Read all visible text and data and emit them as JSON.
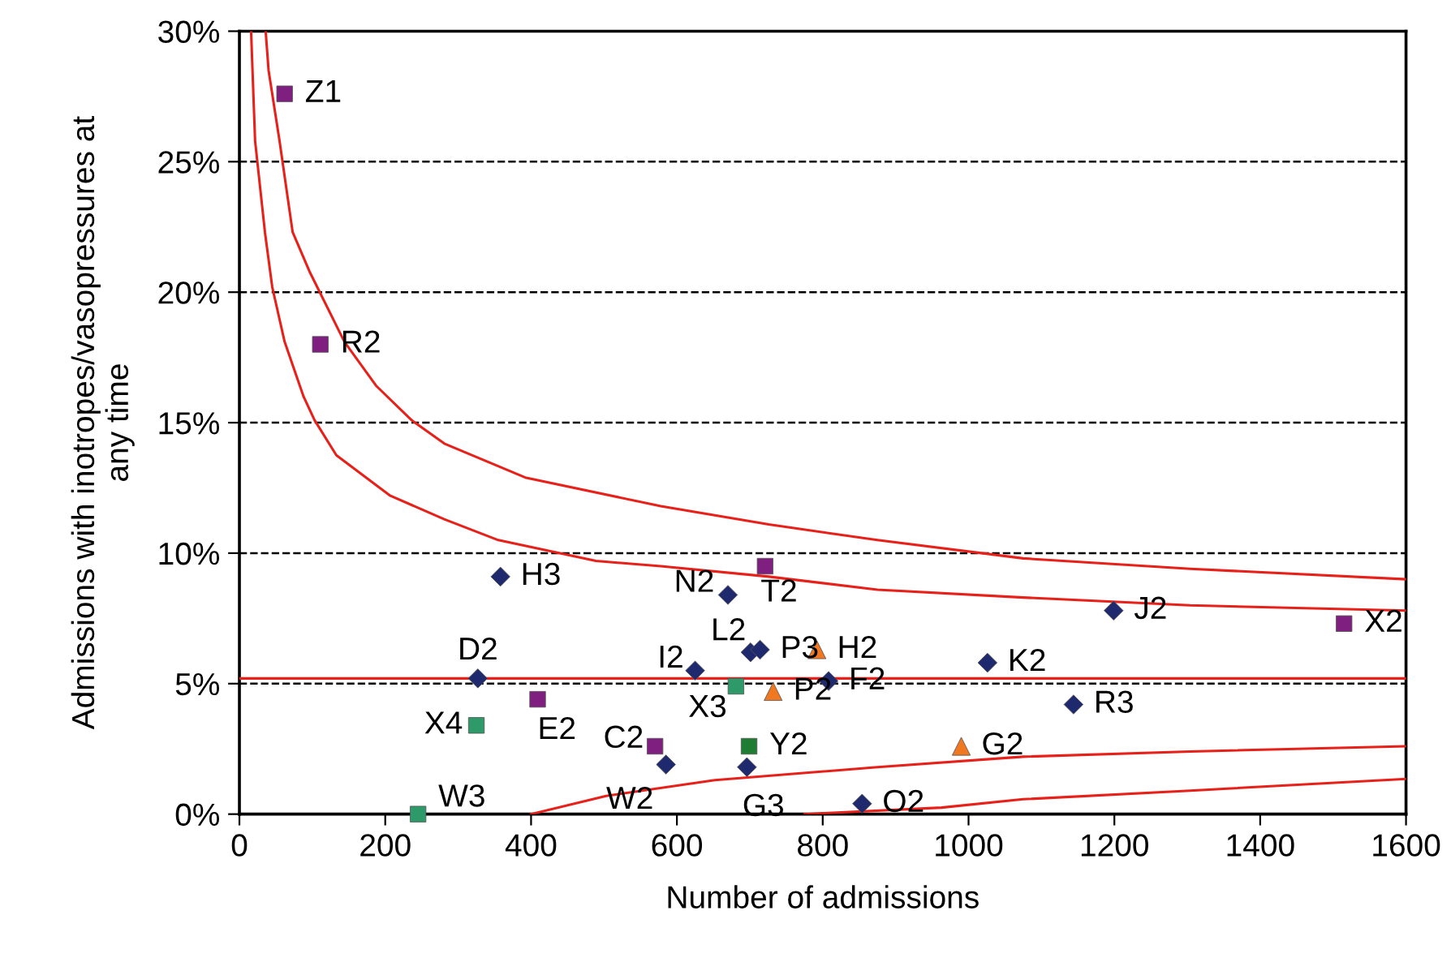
{
  "chart_data": {
    "type": "scatter",
    "xlabel": "Number of admissions",
    "ylabel": "Admissions with inotropes/vasopressures at\nany time",
    "xlim": [
      0,
      1600
    ],
    "xticks": [
      0,
      200,
      400,
      600,
      800,
      1000,
      1200,
      1400,
      1600
    ],
    "ylim": [
      0,
      30
    ],
    "yticks": [
      {
        "value": 0,
        "label": "0%"
      },
      {
        "value": 5,
        "label": "5%"
      },
      {
        "value": 10,
        "label": "10%"
      },
      {
        "value": 15,
        "label": "15%"
      },
      {
        "value": 20,
        "label": "20%"
      },
      {
        "value": 25,
        "label": "25%"
      },
      {
        "value": 30,
        "label": "30%"
      }
    ],
    "grid": "y",
    "ref_lines": [
      {
        "axis": "y",
        "value": 5.2,
        "color": "#e8201a",
        "line_style": "solid"
      }
    ],
    "series": [
      {
        "marker": "diamond",
        "color": "#1f2a6e",
        "x": [
          358,
          327,
          585,
          625,
          670,
          701,
          714,
          696,
          808,
          854,
          1026,
          1144,
          1199
        ],
        "values": [
          9.1,
          5.2,
          1.9,
          5.5,
          8.4,
          6.2,
          6.3,
          1.8,
          5.1,
          0.4,
          5.8,
          4.2,
          7.8
        ]
      },
      {
        "marker": "square",
        "color": "#7f1f7f",
        "x": [
          62,
          111,
          409,
          570,
          721,
          1515
        ],
        "values": [
          27.6,
          18.0,
          4.4,
          2.6,
          9.5,
          7.3
        ]
      },
      {
        "marker": "square",
        "color": "#2e9a6a",
        "colors": [
          "#2e9a6a",
          "#2e9a6a",
          "#2e9a6a",
          "#1e7d32"
        ],
        "x": [
          325,
          245,
          681,
          699
        ],
        "values": [
          3.4,
          0.0,
          4.9,
          2.6
        ]
      },
      {
        "marker": "triangle",
        "color": "#f07820",
        "x": [
          792,
          732,
          990
        ],
        "values": [
          6.3,
          4.7,
          2.6
        ]
      },
      {
        "type": "line",
        "marker": "none",
        "color": "#e8201a",
        "x": [
          16,
          21.5,
          35,
          45,
          62,
          88,
          103,
          133,
          207,
          281,
          355,
          489,
          578,
          726,
          875,
          1075,
          1304,
          1600
        ],
        "values": [
          30,
          25.8,
          22.3,
          20.2,
          18.1,
          16.0,
          15.1,
          13.75,
          12.2,
          11.3,
          10.5,
          9.7,
          9.5,
          9.1,
          8.6,
          8.3,
          8.0,
          7.8
        ]
      },
      {
        "type": "line",
        "marker": "none",
        "color": "#e8201a",
        "x": [
          36,
          40,
          55,
          73,
          96,
          144,
          188,
          236,
          281,
          392,
          578,
          726,
          875,
          1075,
          1304,
          1600
        ],
        "values": [
          30,
          28.5,
          25.8,
          22.3,
          20.8,
          18.1,
          16.4,
          15.1,
          14.2,
          12.9,
          11.8,
          11.1,
          10.5,
          9.8,
          9.4,
          9.0
        ]
      },
      {
        "type": "line",
        "marker": "none",
        "color": "#e8201a",
        "x": [
          400,
          503,
          652,
          875,
          1075,
          1304,
          1600
        ],
        "values": [
          0,
          0.7,
          1.3,
          1.8,
          2.2,
          2.4,
          2.6
        ]
      },
      {
        "type": "line",
        "marker": "none",
        "color": "#e8201a",
        "x": [
          775,
          963,
          1075,
          1304,
          1600
        ],
        "values": [
          0,
          0.25,
          0.57,
          0.9,
          1.35
        ]
      }
    ],
    "annotations": [
      {
        "text": "H3",
        "x": 358,
        "y": 9.1
      },
      {
        "text": "D2",
        "x": 327,
        "y": 5.2
      },
      {
        "text": "W2",
        "x": 585,
        "y": 1.9
      },
      {
        "text": "I2",
        "x": 625,
        "y": 5.5
      },
      {
        "text": "N2",
        "x": 670,
        "y": 8.4
      },
      {
        "text": "L2",
        "x": 701,
        "y": 6.2
      },
      {
        "text": "P3",
        "x": 714,
        "y": 6.3
      },
      {
        "text": "G3",
        "x": 696,
        "y": 1.8
      },
      {
        "text": "F2",
        "x": 808,
        "y": 5.1
      },
      {
        "text": "O2",
        "x": 854,
        "y": 0.4
      },
      {
        "text": "K2",
        "x": 1026,
        "y": 5.8
      },
      {
        "text": "R3",
        "x": 1144,
        "y": 4.2
      },
      {
        "text": "J2",
        "x": 1199,
        "y": 7.8
      },
      {
        "text": "Z1",
        "x": 62,
        "y": 27.6
      },
      {
        "text": "R2",
        "x": 111,
        "y": 18.0
      },
      {
        "text": "E2",
        "x": 409,
        "y": 4.4
      },
      {
        "text": "C2",
        "x": 570,
        "y": 2.6
      },
      {
        "text": "T2",
        "x": 721,
        "y": 9.5
      },
      {
        "text": "X2",
        "x": 1515,
        "y": 7.3
      },
      {
        "text": "X4",
        "x": 325,
        "y": 3.4
      },
      {
        "text": "W3",
        "x": 245,
        "y": 0.0
      },
      {
        "text": "X3",
        "x": 681,
        "y": 4.9
      },
      {
        "text": "Y2",
        "x": 699,
        "y": 2.6
      },
      {
        "text": "H2",
        "x": 792,
        "y": 6.3
      },
      {
        "text": "P2",
        "x": 732,
        "y": 4.7
      },
      {
        "text": "G2",
        "x": 990,
        "y": 2.6
      }
    ]
  }
}
